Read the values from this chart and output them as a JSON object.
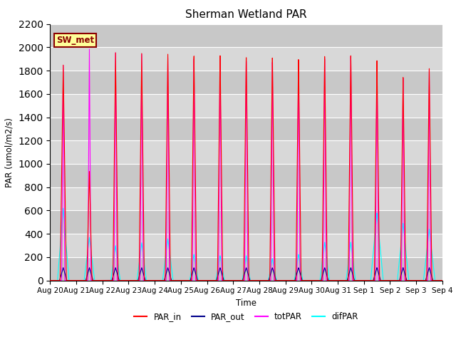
{
  "title": "Sherman Wetland PAR",
  "ylabel": "PAR (umol/m2/s)",
  "xlabel": "Time",
  "ylim": [
    0,
    2200
  ],
  "yticks": [
    0,
    200,
    400,
    600,
    800,
    1000,
    1200,
    1400,
    1600,
    1800,
    2000,
    2200
  ],
  "bg_color": "#d8d8d8",
  "fig_color": "#ffffff",
  "label_box_text": "SW_met",
  "label_box_bg": "#ffff99",
  "label_box_edge": "#8b0000",
  "line_colors": {
    "PAR_in": "#ff0000",
    "PAR_out": "#00008b",
    "totPAR": "#ff00ff",
    "difPAR": "#00ffff"
  },
  "days": [
    "Aug 20",
    "Aug 21",
    "Aug 22",
    "Aug 23",
    "Aug 24",
    "Aug 25",
    "Aug 26",
    "Aug 27",
    "Aug 28",
    "Aug 29",
    "Aug 30",
    "Aug 31",
    "Sep 1",
    "Sep 2",
    "Sep 3",
    "Sep 4"
  ],
  "par_in_peaks": [
    1850,
    940,
    1970,
    1970,
    1970,
    1960,
    1970,
    1960,
    1950,
    1930,
    1950,
    1950,
    1900,
    1750,
    1820,
    0
  ],
  "par_out_peaks": [
    110,
    110,
    110,
    110,
    110,
    110,
    110,
    110,
    110,
    110,
    110,
    110,
    110,
    110,
    110,
    0
  ],
  "tot_par_peaks": [
    1850,
    2000,
    1980,
    1980,
    1960,
    1960,
    1980,
    1960,
    1940,
    1930,
    1950,
    1960,
    1900,
    1750,
    1820,
    0
  ],
  "dif_par_peaks": [
    620,
    370,
    300,
    325,
    360,
    225,
    215,
    215,
    190,
    225,
    330,
    330,
    580,
    490,
    440,
    0
  ],
  "par_in_widths": [
    0.12,
    0.1,
    0.1,
    0.1,
    0.1,
    0.1,
    0.1,
    0.1,
    0.1,
    0.1,
    0.1,
    0.1,
    0.1,
    0.1,
    0.1,
    0.1
  ],
  "tot_par_widths": [
    0.06,
    0.06,
    0.06,
    0.06,
    0.06,
    0.06,
    0.06,
    0.06,
    0.06,
    0.06,
    0.06,
    0.06,
    0.06,
    0.06,
    0.06,
    0.06
  ],
  "par_out_widths": [
    0.14,
    0.14,
    0.14,
    0.14,
    0.14,
    0.14,
    0.14,
    0.14,
    0.14,
    0.14,
    0.14,
    0.14,
    0.14,
    0.14,
    0.14,
    0.14
  ],
  "dif_par_widths": [
    0.22,
    0.2,
    0.18,
    0.18,
    0.2,
    0.16,
    0.16,
    0.15,
    0.15,
    0.16,
    0.18,
    0.18,
    0.24,
    0.22,
    0.22,
    0.18
  ]
}
